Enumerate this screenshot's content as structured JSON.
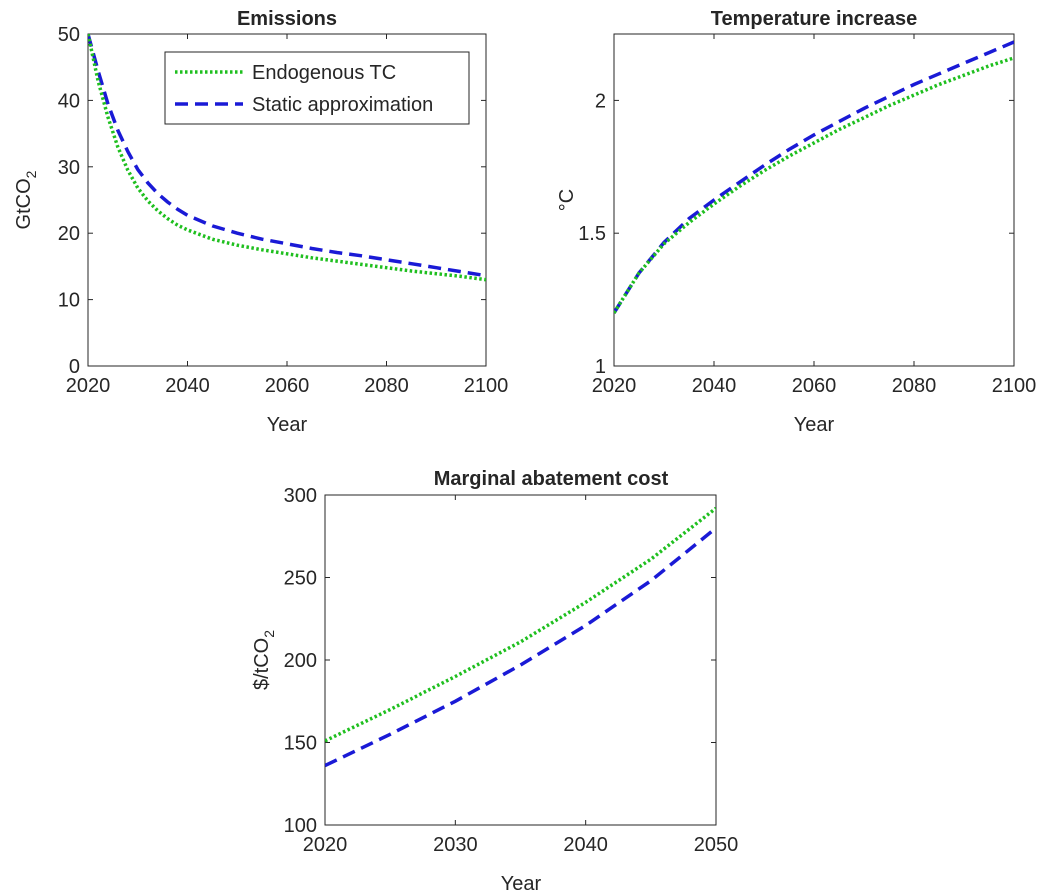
{
  "chart_data": [
    {
      "type": "line",
      "title": "Emissions",
      "xlabel": "Year",
      "ylabel_main": "GtCO",
      "ylabel_sub": "2",
      "xlim": [
        2020,
        2100
      ],
      "ylim": [
        0,
        50
      ],
      "xticks": [
        "2020",
        "2040",
        "2060",
        "2080",
        "2100"
      ],
      "yticks": [
        "0",
        "10",
        "20",
        "30",
        "40",
        "50"
      ],
      "legend": "top-right",
      "series": [
        {
          "name": "Endogenous TC",
          "color": "#1fbf1f",
          "style": "dotted",
          "x": [
            2020,
            2022,
            2024,
            2026,
            2028,
            2030,
            2032,
            2034,
            2036,
            2038,
            2040,
            2045,
            2050,
            2055,
            2060,
            2065,
            2070,
            2075,
            2080,
            2085,
            2090,
            2095,
            2100
          ],
          "y": [
            50,
            43.0,
            37.5,
            33.0,
            29.5,
            26.8,
            24.9,
            23.4,
            22.2,
            21.2,
            20.5,
            19.1,
            18.2,
            17.5,
            16.9,
            16.3,
            15.8,
            15.3,
            14.8,
            14.3,
            13.9,
            13.5,
            13.0
          ]
        },
        {
          "name": "Static approximation",
          "color": "#1a1ad6",
          "style": "dashed",
          "x": [
            2020,
            2022,
            2024,
            2026,
            2028,
            2030,
            2032,
            2034,
            2036,
            2038,
            2040,
            2045,
            2050,
            2055,
            2060,
            2065,
            2070,
            2075,
            2080,
            2085,
            2090,
            2095,
            2100
          ],
          "y": [
            50,
            44.5,
            39.5,
            35.5,
            32.3,
            29.6,
            27.6,
            26.0,
            24.7,
            23.6,
            22.7,
            21.1,
            20.0,
            19.1,
            18.4,
            17.7,
            17.1,
            16.6,
            16.0,
            15.4,
            14.8,
            14.2,
            13.6
          ]
        }
      ]
    },
    {
      "type": "line",
      "title": "Temperature increase",
      "xlabel": "Year",
      "ylabel_main": "°C",
      "ylabel_sub": "",
      "xlim": [
        2020,
        2100
      ],
      "ylim": [
        1,
        2.25
      ],
      "xticks": [
        "2020",
        "2040",
        "2060",
        "2080",
        "2100"
      ],
      "yticks": [
        "1",
        "1.5",
        "2"
      ],
      "ytick_values": [
        1,
        1.5,
        2
      ],
      "series": [
        {
          "name": "Endogenous TC",
          "color": "#1fbf1f",
          "style": "dotted",
          "x": [
            2020,
            2025,
            2030,
            2035,
            2040,
            2045,
            2050,
            2055,
            2060,
            2065,
            2070,
            2075,
            2080,
            2085,
            2090,
            2095,
            2100
          ],
          "y": [
            1.2,
            1.35,
            1.46,
            1.54,
            1.61,
            1.675,
            1.735,
            1.79,
            1.84,
            1.89,
            1.935,
            1.98,
            2.02,
            2.06,
            2.095,
            2.13,
            2.16
          ]
        },
        {
          "name": "Static approximation",
          "color": "#1a1ad6",
          "style": "dashed",
          "x": [
            2020,
            2025,
            2030,
            2035,
            2040,
            2045,
            2050,
            2055,
            2060,
            2065,
            2070,
            2075,
            2080,
            2085,
            2090,
            2095,
            2100
          ],
          "y": [
            1.2,
            1.35,
            1.465,
            1.555,
            1.625,
            1.69,
            1.755,
            1.815,
            1.87,
            1.92,
            1.97,
            2.015,
            2.06,
            2.1,
            2.14,
            2.18,
            2.22
          ]
        }
      ]
    },
    {
      "type": "line",
      "title": "Marginal abatement cost",
      "xlabel": "Year",
      "ylabel_main": "$/tCO",
      "ylabel_sub": "2",
      "xlim": [
        2020,
        2050
      ],
      "ylim": [
        100,
        300
      ],
      "xticks": [
        "2020",
        "2030",
        "2040",
        "2050"
      ],
      "yticks": [
        "100",
        "150",
        "200",
        "250",
        "300"
      ],
      "series": [
        {
          "name": "Endogenous TC",
          "color": "#1fbf1f",
          "style": "dotted",
          "x": [
            2020,
            2025,
            2030,
            2035,
            2040,
            2045,
            2050
          ],
          "y": [
            151,
            170,
            190,
            211,
            235,
            261,
            292
          ]
        },
        {
          "name": "Static approximation",
          "color": "#1a1ad6",
          "style": "dashed",
          "x": [
            2020,
            2025,
            2030,
            2035,
            2040,
            2045,
            2050
          ],
          "y": [
            136,
            155,
            175,
            197,
            221,
            248,
            280
          ]
        }
      ]
    }
  ]
}
